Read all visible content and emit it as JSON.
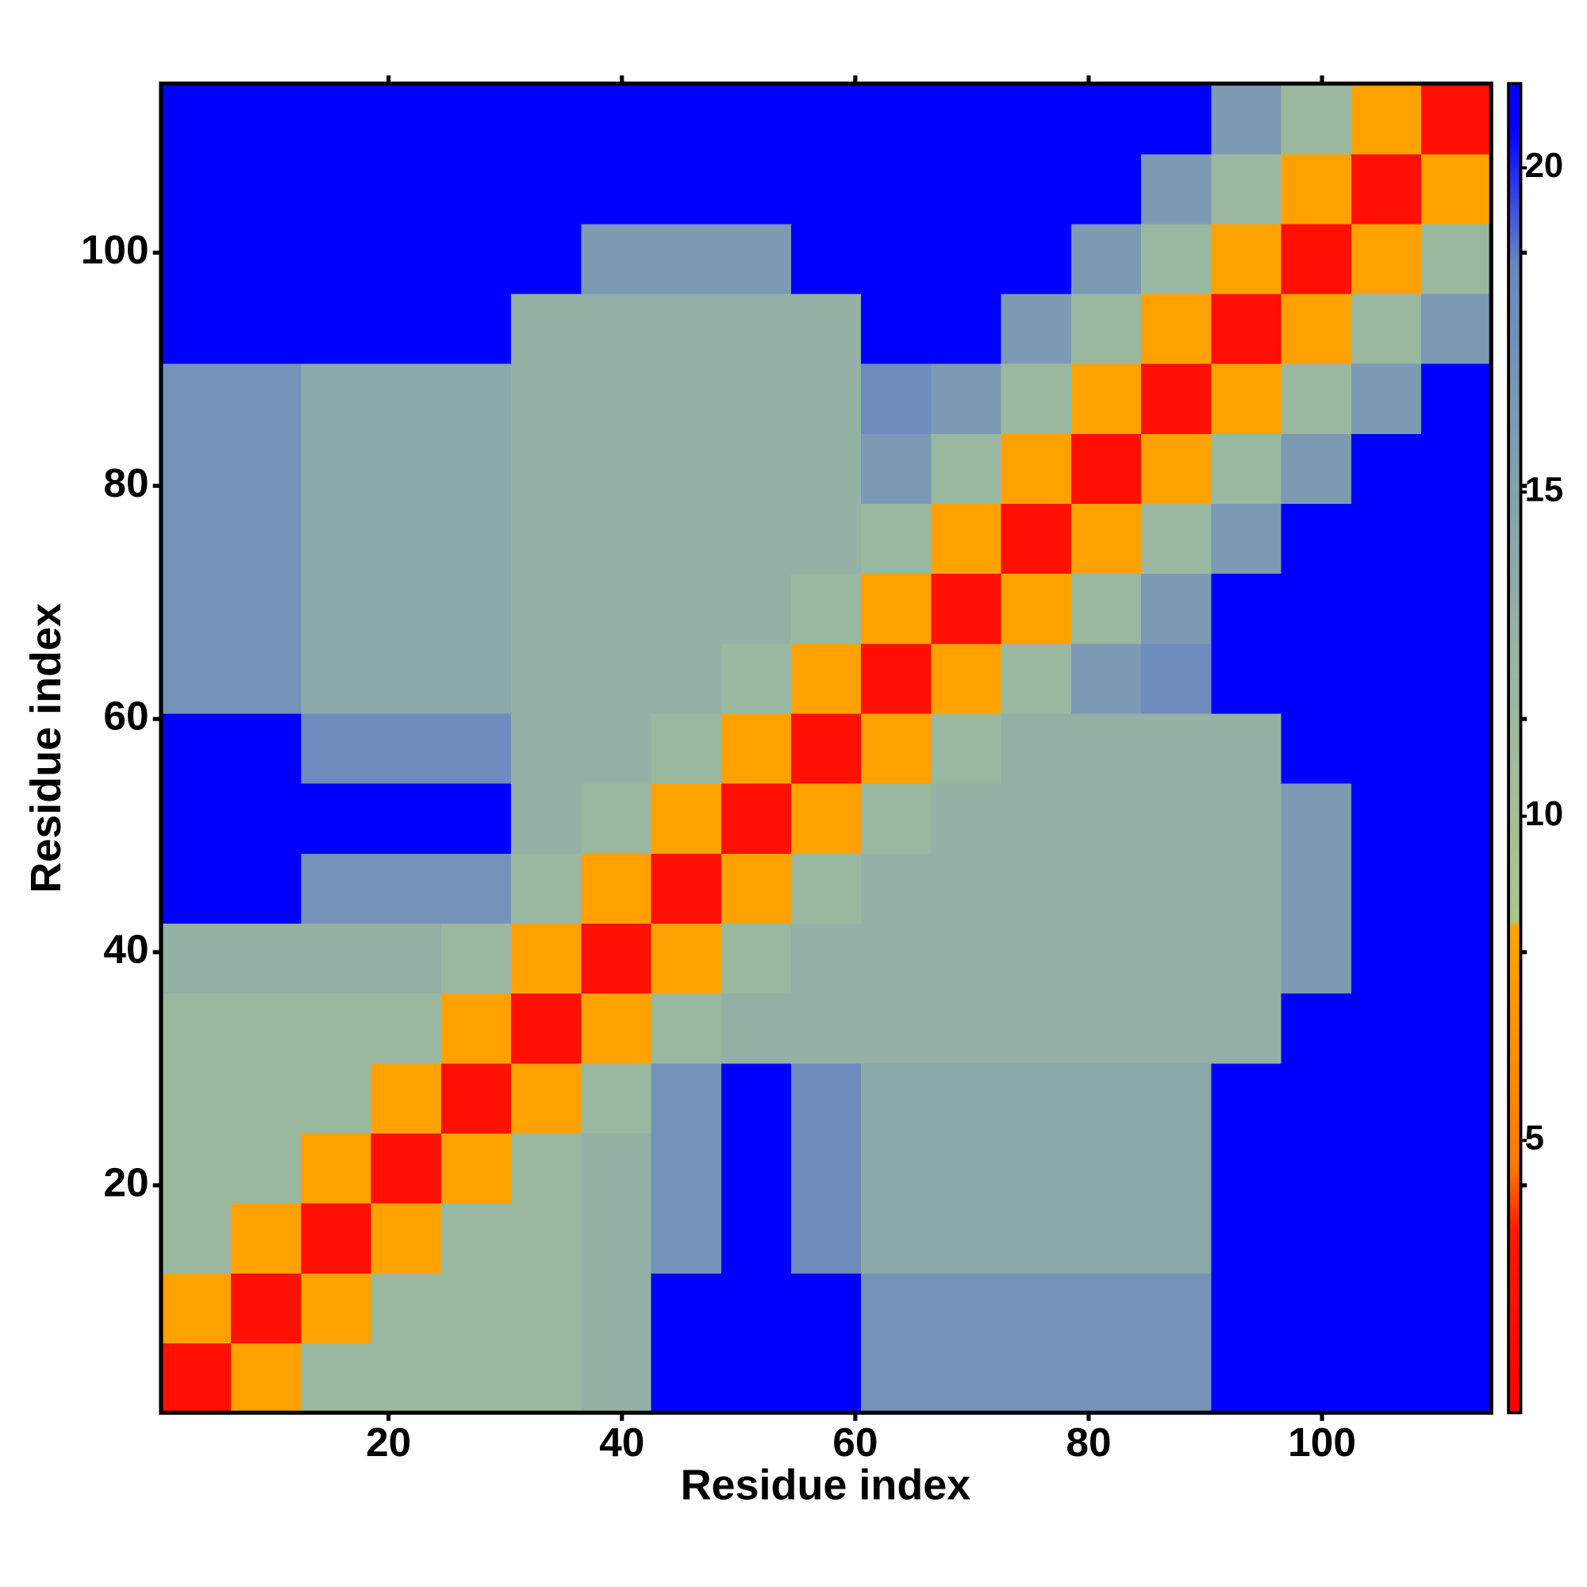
{
  "chart_data": {
    "type": "heatmap",
    "x_label": "Residue index",
    "y_label": "Residue index",
    "x": [
      3.5,
      9.5,
      15.5,
      21.5,
      27.5,
      33.5,
      39.5,
      45.5,
      51.5,
      57.5,
      63.5,
      69.5,
      75.5,
      81.5,
      87.5,
      93.5,
      99.5,
      105.5,
      111.5
    ],
    "y": [
      3.5,
      9.5,
      15.5,
      21.5,
      27.5,
      33.5,
      39.5,
      45.5,
      51.5,
      57.5,
      63.5,
      69.5,
      75.5,
      81.5,
      87.5,
      93.5,
      99.5,
      105.5,
      111.5
    ],
    "z": [
      [
        2.5,
        8,
        12,
        12,
        12,
        12,
        13,
        21,
        21,
        21,
        17,
        17,
        17,
        17,
        17,
        21,
        21,
        21,
        21
      ],
      [
        8,
        2.5,
        8,
        12,
        12,
        12,
        13,
        21,
        21,
        21,
        17,
        17,
        17,
        17,
        17,
        21,
        21,
        21,
        21
      ],
      [
        12,
        8,
        2.5,
        8,
        12,
        12,
        13,
        17,
        21,
        18,
        14,
        14,
        14,
        14,
        14,
        21,
        21,
        21,
        21
      ],
      [
        12,
        12,
        8,
        2.5,
        8,
        12,
        13,
        17,
        21,
        18,
        14,
        14,
        14,
        14,
        14,
        21,
        21,
        21,
        21
      ],
      [
        12,
        12,
        12,
        8,
        2.5,
        8,
        12,
        17,
        21,
        18,
        14,
        14,
        14,
        14,
        14,
        21,
        21,
        21,
        21
      ],
      [
        12,
        12,
        12,
        12,
        8,
        2.5,
        8,
        12,
        13,
        13,
        13,
        13,
        13,
        13,
        13,
        13,
        21,
        21,
        21
      ],
      [
        13,
        13,
        13,
        13,
        12,
        8,
        2.5,
        8,
        12,
        13,
        13,
        13,
        13,
        13,
        13,
        13,
        16,
        21,
        21
      ],
      [
        21,
        21,
        17,
        17,
        17,
        12,
        8,
        2.5,
        8,
        12,
        13,
        13,
        13,
        13,
        13,
        13,
        16,
        21,
        21
      ],
      [
        21,
        21,
        21,
        21,
        21,
        13,
        12,
        8,
        2.5,
        8,
        12,
        13,
        13,
        13,
        13,
        13,
        16,
        21,
        21
      ],
      [
        21,
        21,
        18,
        18,
        18,
        13,
        13,
        12,
        8,
        2.5,
        8,
        12,
        13,
        13,
        13,
        13,
        21,
        21,
        21
      ],
      [
        17,
        17,
        14,
        14,
        14,
        13,
        13,
        13,
        12,
        8,
        2.5,
        8,
        12,
        16,
        18,
        21,
        21,
        21,
        21
      ],
      [
        17,
        17,
        14,
        14,
        14,
        13,
        13,
        13,
        13,
        12,
        8,
        2.5,
        8,
        12,
        16,
        21,
        21,
        21,
        21
      ],
      [
        17,
        17,
        14,
        14,
        14,
        13,
        13,
        13,
        13,
        13,
        12,
        8,
        2.5,
        8,
        12,
        16,
        21,
        21,
        21
      ],
      [
        17,
        17,
        14,
        14,
        14,
        13,
        13,
        13,
        13,
        13,
        16,
        12,
        8,
        2.5,
        8,
        12,
        16,
        21,
        21
      ],
      [
        17,
        17,
        14,
        14,
        14,
        13,
        13,
        13,
        13,
        13,
        18,
        16,
        12,
        8,
        2.5,
        8,
        12,
        16,
        21
      ],
      [
        21,
        21,
        21,
        21,
        21,
        13,
        13,
        13,
        13,
        13,
        21,
        21,
        16,
        12,
        8,
        2.5,
        8,
        12,
        16
      ],
      [
        21,
        21,
        21,
        21,
        21,
        21,
        16,
        16,
        16,
        21,
        21,
        21,
        21,
        16,
        12,
        8,
        2.5,
        8,
        12
      ],
      [
        21,
        21,
        21,
        21,
        21,
        21,
        21,
        21,
        21,
        21,
        21,
        21,
        21,
        21,
        16,
        12,
        8,
        2.5,
        8
      ],
      [
        21,
        21,
        21,
        21,
        21,
        21,
        21,
        21,
        21,
        21,
        21,
        21,
        21,
        21,
        21,
        16,
        12,
        8,
        2.5
      ]
    ],
    "xlim": [
      0.5,
      114.5
    ],
    "ylim": [
      0.5,
      114.5
    ],
    "xticks": [
      20,
      40,
      60,
      80,
      100
    ],
    "yticks": [
      20,
      40,
      60,
      80,
      100
    ],
    "colorscale": [
      [
        0.8,
        "#ff0000"
      ],
      [
        3.6,
        "#ff1a00"
      ],
      [
        4.6,
        "#ff7a00"
      ],
      [
        8.3,
        "#ffa500"
      ],
      [
        8.4,
        "#a8c890"
      ],
      [
        12,
        "#9ab8a0"
      ],
      [
        18.5,
        "#6a88c0"
      ],
      [
        20.6,
        "#0000ff"
      ],
      [
        21.3,
        "#0000ff"
      ]
    ],
    "colorbar_range": [
      0.8,
      21.3
    ],
    "colorbar_ticks": [
      5,
      10,
      15,
      20
    ]
  }
}
